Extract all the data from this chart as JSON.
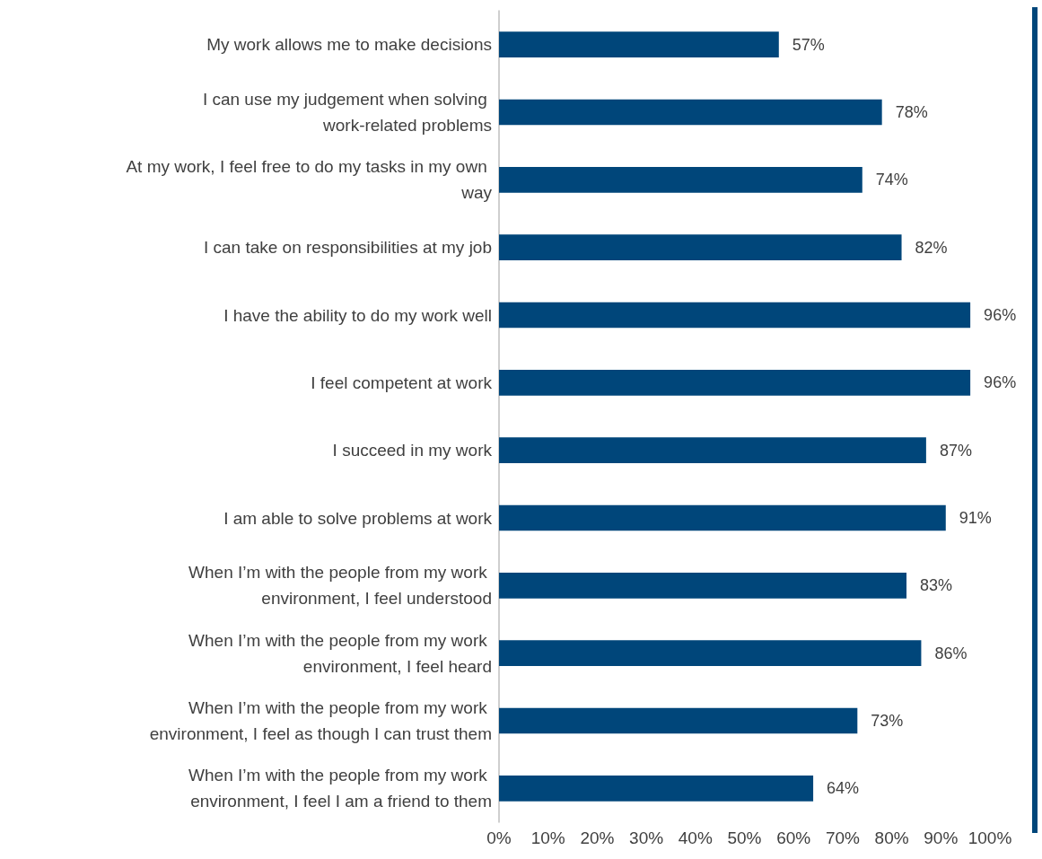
{
  "chart_data": {
    "type": "bar",
    "orientation": "horizontal",
    "categories": [
      "My work allows me to make decisions",
      "I can use my judgement when solving work-related problems",
      "At my work, I feel free to do my tasks in my own way",
      "I can take on responsibilities at my job",
      "I have the ability to do my work well",
      "I feel competent at work",
      "I succeed in my work",
      "I am able to solve problems at work",
      "When I’m with the people from my work environment, I feel understood",
      "When I’m with the people from my work environment, I feel heard",
      "When I’m with the people from my work environment, I feel as though I can trust them",
      "When I’m with the people from my work environment, I feel I am a friend to them"
    ],
    "values": [
      57,
      78,
      74,
      82,
      96,
      96,
      87,
      91,
      83,
      86,
      73,
      64
    ],
    "value_labels": [
      "57%",
      "78%",
      "74%",
      "82%",
      "96%",
      "96%",
      "87%",
      "91%",
      "83%",
      "86%",
      "73%",
      "64%"
    ],
    "color": "#00467a",
    "xlim": [
      0,
      100
    ],
    "xticks": [
      {
        "value": 0,
        "label": "0%"
      },
      {
        "value": 10,
        "label": "10%"
      },
      {
        "value": 20,
        "label": "20%"
      },
      {
        "value": 30,
        "label": "30%"
      },
      {
        "value": 40,
        "label": "40%"
      },
      {
        "value": 50,
        "label": "50%"
      },
      {
        "value": 60,
        "label": "60%"
      },
      {
        "value": 70,
        "label": "70%"
      },
      {
        "value": 80,
        "label": "80%"
      },
      {
        "value": 90,
        "label": "90%"
      },
      {
        "value": 100,
        "label": "100%"
      }
    ],
    "grid": false
  }
}
